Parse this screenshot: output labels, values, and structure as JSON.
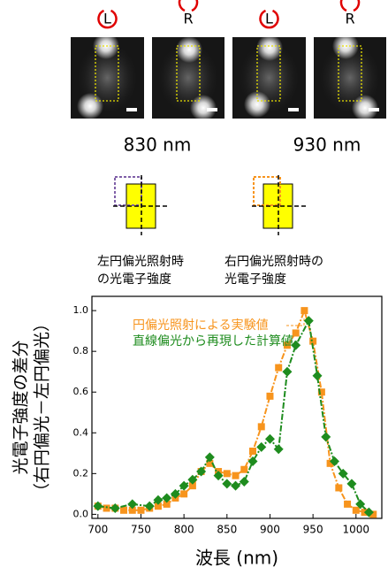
{
  "images": {
    "polarization_labels": [
      "L",
      "R",
      "L",
      "R"
    ],
    "wavelength_labels": [
      "830 nm",
      "930 nm"
    ]
  },
  "diagrams": {
    "captions": [
      [
        "左円偏光照射時",
        "の光電子強度"
      ],
      [
        "右円偏光照射時の",
        "光電子強度"
      ]
    ]
  },
  "chart_data": {
    "type": "line",
    "y_label": [
      "光電子強度の差分",
      "（右円偏光－左円偏光）"
    ],
    "x_label": "波長 (nm)",
    "xlim": [
      693,
      1030
    ],
    "ylim": [
      -0.02,
      1.07
    ],
    "xticks": [
      700,
      750,
      800,
      850,
      900,
      950,
      1000
    ],
    "yticks": [
      {
        "value": 0,
        "label": "0.0"
      },
      {
        "value": 0.2,
        "label": "0.2"
      },
      {
        "value": 0.4,
        "label": "0.4"
      },
      {
        "value": 0.6,
        "label": "0.6"
      },
      {
        "value": 0.8,
        "label": "0.8"
      },
      {
        "value": 1,
        "label": "1.0"
      }
    ],
    "series": [
      {
        "name": "円偏光照射による実験値",
        "color": "#f7941d",
        "marker": "square",
        "x": [
          700,
          710,
          720,
          730,
          740,
          750,
          760,
          770,
          780,
          790,
          800,
          810,
          820,
          830,
          840,
          850,
          860,
          870,
          880,
          890,
          900,
          910,
          920,
          930,
          940,
          950,
          960,
          970,
          980,
          990,
          1000,
          1010,
          1020
        ],
        "values": [
          0.04,
          0.03,
          0.03,
          0.02,
          0.02,
          0.02,
          0.03,
          0.04,
          0.05,
          0.08,
          0.1,
          0.14,
          0.21,
          0.25,
          0.21,
          0.2,
          0.19,
          0.22,
          0.31,
          0.43,
          0.58,
          0.72,
          0.83,
          0.89,
          1.0,
          0.85,
          0.6,
          0.25,
          0.13,
          0.05,
          0.02,
          0.01,
          0.0
        ]
      },
      {
        "name": "直線偏光から再現した計算値",
        "color": "#1e8c1e",
        "marker": "diamond",
        "x": [
          700,
          720,
          740,
          760,
          770,
          780,
          790,
          800,
          810,
          820,
          830,
          840,
          850,
          860,
          870,
          880,
          890,
          900,
          910,
          920,
          930,
          945,
          955,
          965,
          975,
          985,
          995,
          1005,
          1015
        ],
        "values": [
          0.04,
          0.03,
          0.05,
          0.04,
          0.07,
          0.08,
          0.1,
          0.14,
          0.17,
          0.21,
          0.28,
          0.19,
          0.15,
          0.14,
          0.16,
          0.26,
          0.33,
          0.37,
          0.32,
          0.7,
          0.83,
          0.95,
          0.68,
          0.38,
          0.26,
          0.2,
          0.15,
          0.05,
          0.01
        ]
      }
    ]
  }
}
